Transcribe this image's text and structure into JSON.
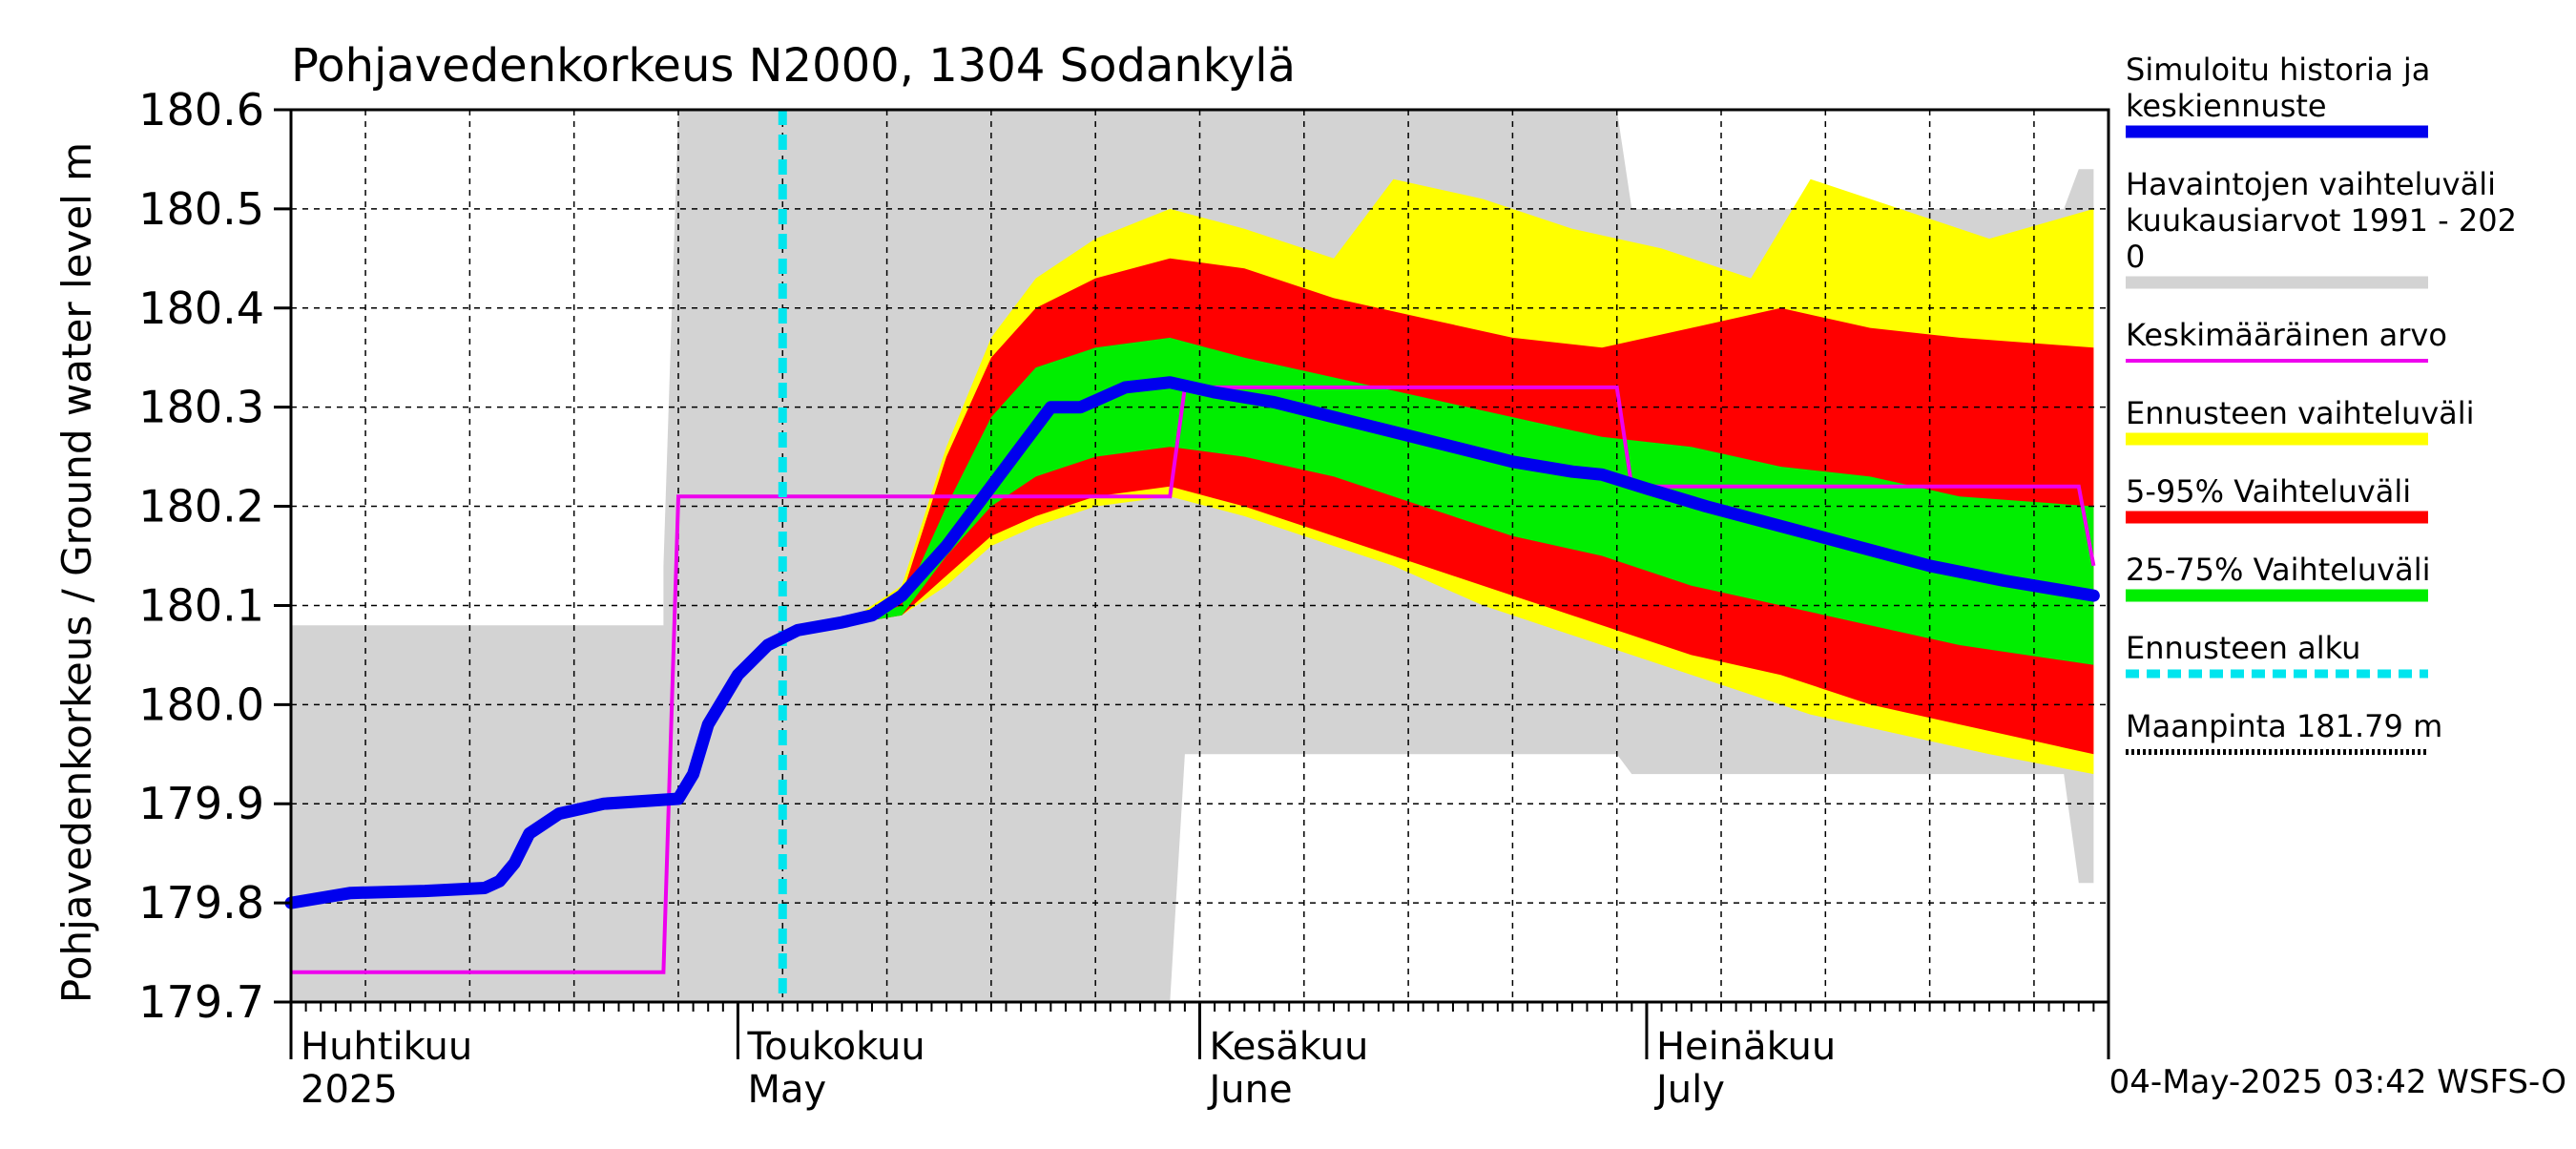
{
  "chart_data": {
    "type": "area",
    "title": "Pohjavedenkorkeus N2000, 1304 Sodankylä",
    "ylabel": "Pohjavedenkorkeus / Ground water level   m",
    "ylim": [
      179.7,
      180.6
    ],
    "yticks": [
      "179.7",
      "179.8",
      "179.9",
      "180.0",
      "180.1",
      "180.2",
      "180.3",
      "180.4",
      "180.5",
      "180.6"
    ],
    "x_range": [
      "2025-04-01",
      "2025-07-31"
    ],
    "grid": true,
    "month_labels": [
      {
        "date": "2025-04-01",
        "fi": "Huhtikuu",
        "en": "2025"
      },
      {
        "date": "2025-05-01",
        "fi": "Toukokuu",
        "en": "May"
      },
      {
        "date": "2025-06-01",
        "fi": "Kesäkuu",
        "en": "June"
      },
      {
        "date": "2025-07-01",
        "fi": "Heinäkuu",
        "en": "July"
      }
    ],
    "forecast_start": "2025-05-04",
    "footer": "04-May-2025 03:42 WSFS-O",
    "colors": {
      "history_band": "#d3d3d3",
      "forecast_range": "#ffff00",
      "band_5_95": "#ff0000",
      "band_25_75": "#00ee00",
      "simulated": "#0000ee",
      "mean": "#ee00ee",
      "forecast_start": "#00e5ee",
      "ground": "#000000"
    },
    "legend": [
      {
        "label": "Simuloitu historia ja",
        "label2": "keskiennuste",
        "color": "#0000ee",
        "style": "thick"
      },
      {
        "label": "Havaintojen vaihteluväli",
        "label2": " kuukausiarvot 1991 - 202",
        "label3": "0",
        "color": "#d3d3d3",
        "style": "thick"
      },
      {
        "label": "Keskimääräinen arvo",
        "color": "#ee00ee",
        "style": "thin"
      },
      {
        "label": "Ennusteen vaihteluväli",
        "color": "#ffff00",
        "style": "thick"
      },
      {
        "label": "5-95% Vaihteluväli",
        "color": "#ff0000",
        "style": "thick"
      },
      {
        "label": "25-75% Vaihteluväli",
        "color": "#00ee00",
        "style": "thick"
      },
      {
        "label": "Ennusteen alku",
        "color": "#00e5ee",
        "style": "dashed"
      },
      {
        "label": "Maanpinta 181.79 m",
        "color": "#000000",
        "style": "dotted"
      }
    ],
    "history_band": [
      {
        "x": "2025-04-01",
        "lo": 179.7,
        "hi": 180.08
      },
      {
        "x": "2025-04-26",
        "lo": 179.7,
        "hi": 180.08
      },
      {
        "x": "2025-04-26",
        "lo": 179.7,
        "hi": 180.14
      },
      {
        "x": "2025-04-27",
        "lo": 179.7,
        "hi": 180.6
      },
      {
        "x": "2025-05-30",
        "lo": 179.7,
        "hi": 180.6
      },
      {
        "x": "2025-05-31",
        "lo": 179.95,
        "hi": 180.6
      },
      {
        "x": "2025-06-29",
        "lo": 179.95,
        "hi": 180.6
      },
      {
        "x": "2025-06-30",
        "lo": 179.93,
        "hi": 180.5
      },
      {
        "x": "2025-07-29",
        "lo": 179.93,
        "hi": 180.5
      },
      {
        "x": "2025-07-30",
        "lo": 179.82,
        "hi": 180.54
      },
      {
        "x": "2025-07-31",
        "lo": 179.82,
        "hi": 180.54
      }
    ],
    "forecast_range": [
      {
        "x": "2025-05-04",
        "lo": 180.06,
        "hi": 180.06
      },
      {
        "x": "2025-05-08",
        "lo": 180.08,
        "hi": 180.08
      },
      {
        "x": "2025-05-12",
        "lo": 180.09,
        "hi": 180.12
      },
      {
        "x": "2025-05-15",
        "lo": 180.12,
        "hi": 180.26
      },
      {
        "x": "2025-05-18",
        "lo": 180.16,
        "hi": 180.37
      },
      {
        "x": "2025-05-21",
        "lo": 180.18,
        "hi": 180.43
      },
      {
        "x": "2025-05-25",
        "lo": 180.2,
        "hi": 180.47
      },
      {
        "x": "2025-05-30",
        "lo": 180.21,
        "hi": 180.5
      },
      {
        "x": "2025-06-04",
        "lo": 180.19,
        "hi": 180.48
      },
      {
        "x": "2025-06-10",
        "lo": 180.16,
        "hi": 180.45
      },
      {
        "x": "2025-06-14",
        "lo": 180.14,
        "hi": 180.53
      },
      {
        "x": "2025-06-20",
        "lo": 180.1,
        "hi": 180.51
      },
      {
        "x": "2025-06-26",
        "lo": 180.07,
        "hi": 180.48
      },
      {
        "x": "2025-07-02",
        "lo": 180.04,
        "hi": 180.46
      },
      {
        "x": "2025-07-08",
        "lo": 180.01,
        "hi": 180.43
      },
      {
        "x": "2025-07-12",
        "lo": 179.99,
        "hi": 180.53
      },
      {
        "x": "2025-07-18",
        "lo": 179.97,
        "hi": 180.5
      },
      {
        "x": "2025-07-24",
        "lo": 179.95,
        "hi": 180.47
      },
      {
        "x": "2025-07-31",
        "lo": 179.93,
        "hi": 180.5
      }
    ],
    "band_5_95": [
      {
        "x": "2025-05-04",
        "lo": 180.06,
        "hi": 180.06
      },
      {
        "x": "2025-05-08",
        "lo": 180.08,
        "hi": 180.08
      },
      {
        "x": "2025-05-12",
        "lo": 180.09,
        "hi": 180.11
      },
      {
        "x": "2025-05-15",
        "lo": 180.13,
        "hi": 180.25
      },
      {
        "x": "2025-05-18",
        "lo": 180.17,
        "hi": 180.35
      },
      {
        "x": "2025-05-21",
        "lo": 180.19,
        "hi": 180.4
      },
      {
        "x": "2025-05-25",
        "lo": 180.21,
        "hi": 180.43
      },
      {
        "x": "2025-05-30",
        "lo": 180.22,
        "hi": 180.45
      },
      {
        "x": "2025-06-04",
        "lo": 180.2,
        "hi": 180.44
      },
      {
        "x": "2025-06-10",
        "lo": 180.17,
        "hi": 180.41
      },
      {
        "x": "2025-06-16",
        "lo": 180.14,
        "hi": 180.39
      },
      {
        "x": "2025-06-22",
        "lo": 180.11,
        "hi": 180.37
      },
      {
        "x": "2025-06-28",
        "lo": 180.08,
        "hi": 180.36
      },
      {
        "x": "2025-07-04",
        "lo": 180.05,
        "hi": 180.38
      },
      {
        "x": "2025-07-10",
        "lo": 180.03,
        "hi": 180.4
      },
      {
        "x": "2025-07-16",
        "lo": 180.0,
        "hi": 180.38
      },
      {
        "x": "2025-07-22",
        "lo": 179.98,
        "hi": 180.37
      },
      {
        "x": "2025-07-31",
        "lo": 179.95,
        "hi": 180.36
      }
    ],
    "band_25_75": [
      {
        "x": "2025-05-04",
        "lo": 180.06,
        "hi": 180.06
      },
      {
        "x": "2025-05-08",
        "lo": 180.08,
        "hi": 180.08
      },
      {
        "x": "2025-05-12",
        "lo": 180.09,
        "hi": 180.1
      },
      {
        "x": "2025-05-15",
        "lo": 180.15,
        "hi": 180.2
      },
      {
        "x": "2025-05-18",
        "lo": 180.2,
        "hi": 180.29
      },
      {
        "x": "2025-05-21",
        "lo": 180.23,
        "hi": 180.34
      },
      {
        "x": "2025-05-25",
        "lo": 180.25,
        "hi": 180.36
      },
      {
        "x": "2025-05-30",
        "lo": 180.26,
        "hi": 180.37
      },
      {
        "x": "2025-06-04",
        "lo": 180.25,
        "hi": 180.35
      },
      {
        "x": "2025-06-10",
        "lo": 180.23,
        "hi": 180.33
      },
      {
        "x": "2025-06-16",
        "lo": 180.2,
        "hi": 180.31
      },
      {
        "x": "2025-06-22",
        "lo": 180.17,
        "hi": 180.29
      },
      {
        "x": "2025-06-28",
        "lo": 180.15,
        "hi": 180.27
      },
      {
        "x": "2025-07-04",
        "lo": 180.12,
        "hi": 180.26
      },
      {
        "x": "2025-07-10",
        "lo": 180.1,
        "hi": 180.24
      },
      {
        "x": "2025-07-16",
        "lo": 180.08,
        "hi": 180.23
      },
      {
        "x": "2025-07-22",
        "lo": 180.06,
        "hi": 180.21
      },
      {
        "x": "2025-07-31",
        "lo": 180.04,
        "hi": 180.2
      }
    ],
    "simulated": [
      {
        "x": "2025-04-01",
        "y": 179.8
      },
      {
        "x": "2025-04-05",
        "y": 179.81
      },
      {
        "x": "2025-04-10",
        "y": 179.812
      },
      {
        "x": "2025-04-14",
        "y": 179.815
      },
      {
        "x": "2025-04-15",
        "y": 179.822
      },
      {
        "x": "2025-04-16",
        "y": 179.84
      },
      {
        "x": "2025-04-17",
        "y": 179.87
      },
      {
        "x": "2025-04-19",
        "y": 179.89
      },
      {
        "x": "2025-04-22",
        "y": 179.9
      },
      {
        "x": "2025-04-27",
        "y": 179.905
      },
      {
        "x": "2025-04-28",
        "y": 179.93
      },
      {
        "x": "2025-04-29",
        "y": 179.98
      },
      {
        "x": "2025-05-01",
        "y": 180.03
      },
      {
        "x": "2025-05-03",
        "y": 180.06
      },
      {
        "x": "2025-05-05",
        "y": 180.075
      },
      {
        "x": "2025-05-08",
        "y": 180.083
      },
      {
        "x": "2025-05-10",
        "y": 180.09
      },
      {
        "x": "2025-05-12",
        "y": 180.11
      },
      {
        "x": "2025-05-15",
        "y": 180.16
      },
      {
        "x": "2025-05-18",
        "y": 180.22
      },
      {
        "x": "2025-05-20",
        "y": 180.26
      },
      {
        "x": "2025-05-22",
        "y": 180.3
      },
      {
        "x": "2025-05-24",
        "y": 180.3
      },
      {
        "x": "2025-05-27",
        "y": 180.32
      },
      {
        "x": "2025-05-30",
        "y": 180.325
      },
      {
        "x": "2025-06-02",
        "y": 180.315
      },
      {
        "x": "2025-06-06",
        "y": 180.305
      },
      {
        "x": "2025-06-10",
        "y": 180.29
      },
      {
        "x": "2025-06-14",
        "y": 180.275
      },
      {
        "x": "2025-06-18",
        "y": 180.26
      },
      {
        "x": "2025-06-22",
        "y": 180.245
      },
      {
        "x": "2025-06-26",
        "y": 180.235
      },
      {
        "x": "2025-06-28",
        "y": 180.232
      },
      {
        "x": "2025-07-01",
        "y": 180.218
      },
      {
        "x": "2025-07-05",
        "y": 180.2
      },
      {
        "x": "2025-07-10",
        "y": 180.18
      },
      {
        "x": "2025-07-15",
        "y": 180.16
      },
      {
        "x": "2025-07-20",
        "y": 180.14
      },
      {
        "x": "2025-07-25",
        "y": 180.125
      },
      {
        "x": "2025-07-31",
        "y": 180.11
      }
    ],
    "mean": [
      {
        "x": "2025-04-01",
        "y": 179.73
      },
      {
        "x": "2025-04-26",
        "y": 179.73
      },
      {
        "x": "2025-04-27",
        "y": 180.21
      },
      {
        "x": "2025-05-30",
        "y": 180.21
      },
      {
        "x": "2025-05-31",
        "y": 180.32
      },
      {
        "x": "2025-06-29",
        "y": 180.32
      },
      {
        "x": "2025-06-30",
        "y": 180.22
      },
      {
        "x": "2025-07-30",
        "y": 180.22
      },
      {
        "x": "2025-07-31",
        "y": 180.14
      }
    ]
  }
}
